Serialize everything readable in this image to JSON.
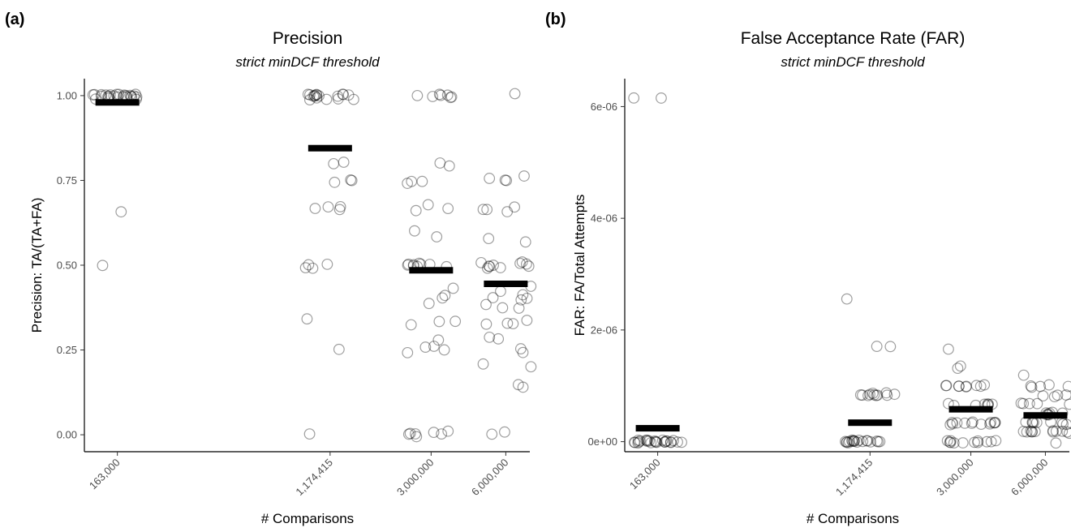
{
  "chart_data": [
    {
      "panel_tag": "(a)",
      "type": "scatter",
      "title": "Precision",
      "subtitle": "strict minDCF threshold",
      "xlabel": "# Comparisons",
      "ylabel": "Precision: TA/(TA+FA)",
      "x_scale": "log",
      "xlim": [
        120000,
        7500000
      ],
      "ylim": [
        -0.05,
        1.05
      ],
      "x_ticks": [
        163000,
        1174415,
        3000000,
        6000000
      ],
      "x_tick_labels": [
        "163,000",
        "1,174,415",
        "3,000,000",
        "6,000,000"
      ],
      "y_ticks": [
        0,
        0.25,
        0.5,
        0.75,
        1.0
      ],
      "y_tick_labels": [
        "0.00",
        "0.25",
        "0.50",
        "0.75",
        "1.00"
      ],
      "grid": false,
      "series": [
        {
          "x": 163000,
          "mean": 0.98,
          "values": [
            1.0,
            1.0,
            1.0,
            1.0,
            1.0,
            1.0,
            1.0,
            1.0,
            1.0,
            1.0,
            1.0,
            1.0,
            1.0,
            1.0,
            1.0,
            1.0,
            0.99,
            0.99,
            0.99,
            1.0,
            1.0,
            1.0,
            1.0,
            1.0,
            1.0,
            0.66,
            0.495
          ]
        },
        {
          "x": 1174415,
          "mean": 0.845,
          "values": [
            1.0,
            1.0,
            1.0,
            1.0,
            1.0,
            1.0,
            1.0,
            1.0,
            1.0,
            1.0,
            1.0,
            1.0,
            0.99,
            0.99,
            0.99,
            0.99,
            0.99,
            0.805,
            0.795,
            0.755,
            0.75,
            0.745,
            0.67,
            0.67,
            0.67,
            0.665,
            0.505,
            0.5,
            0.495,
            0.49,
            0.345,
            0.25,
            0.0
          ]
        },
        {
          "x": 3000000,
          "mean": 0.485,
          "values": [
            1.0,
            1.0,
            1.0,
            1.0,
            1.0,
            0.995,
            0.995,
            0.8,
            0.79,
            0.75,
            0.75,
            0.745,
            0.675,
            0.67,
            0.665,
            0.6,
            0.58,
            0.505,
            0.505,
            0.5,
            0.5,
            0.5,
            0.5,
            0.5,
            0.5,
            0.495,
            0.435,
            0.41,
            0.405,
            0.385,
            0.335,
            0.33,
            0.325,
            0.28,
            0.26,
            0.255,
            0.25,
            0.245,
            0.01,
            0.005,
            0.005,
            0.0,
            0.0,
            0.0,
            -0.005
          ]
        },
        {
          "x": 6000000,
          "mean": 0.445,
          "values": [
            1.005,
            0.76,
            0.755,
            0.755,
            0.75,
            0.675,
            0.665,
            0.665,
            0.66,
            0.58,
            0.57,
            0.51,
            0.505,
            0.505,
            0.5,
            0.5,
            0.5,
            0.5,
            0.5,
            0.495,
            0.49,
            0.44,
            0.42,
            0.41,
            0.4,
            0.4,
            0.4,
            0.385,
            0.375,
            0.37,
            0.335,
            0.33,
            0.33,
            0.325,
            0.285,
            0.28,
            0.25,
            0.245,
            0.205,
            0.2,
            0.145,
            0.14,
            0.005,
            0.0
          ]
        }
      ]
    },
    {
      "panel_tag": "(b)",
      "type": "scatter",
      "title": "False Acceptance Rate (FAR)",
      "subtitle": "strict minDCF threshold",
      "xlabel": "# Comparisons",
      "ylabel": "FAR: FA/Total Attempts",
      "x_scale": "log",
      "xlim": [
        120000,
        7500000
      ],
      "ylim": [
        -1.8e-07,
        6.5e-06
      ],
      "x_ticks": [
        163000,
        1174415,
        3000000,
        6000000
      ],
      "x_tick_labels": [
        "163,000",
        "1,174,415",
        "3,000,000",
        "6,000,000"
      ],
      "y_ticks": [
        0,
        2e-06,
        4e-06,
        6e-06
      ],
      "y_tick_labels": [
        "0e+00",
        "2e-06",
        "4e-06",
        "6e-06"
      ],
      "grid": false,
      "series": [
        {
          "x": 163000,
          "mean": 2.4e-07,
          "values": [
            6.13e-06,
            6.13e-06,
            0,
            0,
            0,
            0,
            0,
            0,
            0,
            0,
            0,
            0,
            0,
            0,
            0,
            0,
            0,
            0,
            0,
            0,
            0,
            0,
            0,
            0,
            0,
            0,
            0
          ]
        },
        {
          "x": 1174415,
          "mean": 3.4e-07,
          "values": [
            2.55e-06,
            1.7e-06,
            1.7e-06,
            8.5e-07,
            8.5e-07,
            8.5e-07,
            8.5e-07,
            8.5e-07,
            8.5e-07,
            8.5e-07,
            8.5e-07,
            8.5e-07,
            8.5e-07,
            8.5e-07,
            0,
            0,
            0,
            0,
            0,
            0,
            0,
            0,
            0,
            0,
            0,
            0,
            0,
            0,
            0,
            0,
            0,
            0,
            0
          ]
        },
        {
          "x": 3000000,
          "mean": 5.8e-07,
          "values": [
            1.67e-06,
            1.33e-06,
            1.33e-06,
            1e-06,
            1e-06,
            1e-06,
            1e-06,
            1e-06,
            1e-06,
            1e-06,
            1e-06,
            1e-06,
            6.7e-07,
            6.7e-07,
            6.7e-07,
            6.7e-07,
            6.7e-07,
            6.7e-07,
            6.7e-07,
            6.7e-07,
            3.3e-07,
            3.3e-07,
            3.3e-07,
            3.3e-07,
            3.3e-07,
            3.3e-07,
            3.3e-07,
            3.3e-07,
            3.3e-07,
            3.3e-07,
            3.3e-07,
            3.3e-07,
            3.3e-07,
            0,
            0,
            0,
            0,
            0,
            0,
            0,
            0,
            0,
            0,
            0,
            0
          ]
        },
        {
          "x": 6000000,
          "mean": 4.7e-07,
          "values": [
            1.17e-06,
            1e-06,
            1e-06,
            1e-06,
            1e-06,
            1e-06,
            8.3e-07,
            8.3e-07,
            8.3e-07,
            8.3e-07,
            6.7e-07,
            6.7e-07,
            6.7e-07,
            6.7e-07,
            6.7e-07,
            5e-07,
            5e-07,
            5e-07,
            5e-07,
            5e-07,
            5e-07,
            5e-07,
            3.3e-07,
            3.3e-07,
            3.3e-07,
            3.3e-07,
            3.3e-07,
            3.3e-07,
            3.3e-07,
            3.3e-07,
            3.3e-07,
            1.7e-07,
            1.7e-07,
            1.7e-07,
            1.7e-07,
            1.7e-07,
            1.7e-07,
            1.7e-07,
            1.7e-07,
            1.7e-07,
            1.7e-07,
            1.7e-07,
            1.7e-07,
            0
          ]
        }
      ]
    }
  ]
}
